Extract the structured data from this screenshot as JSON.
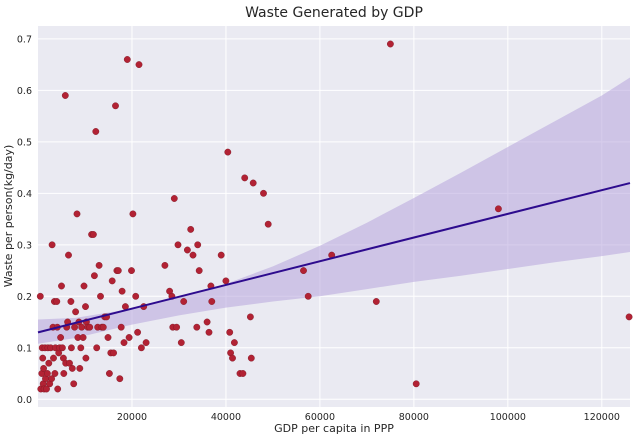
{
  "chart_data": {
    "type": "scatter",
    "title": "Waste Generated by GDP",
    "xlabel": "GDP per capita in PPP",
    "ylabel": "Waste per person(kg/day)",
    "xlim": [
      0,
      126000
    ],
    "ylim": [
      -0.015,
      0.725
    ],
    "xticks": [
      20000,
      40000,
      60000,
      80000,
      100000,
      120000
    ],
    "yticks": [
      0.0,
      0.1,
      0.2,
      0.3,
      0.4,
      0.5,
      0.6,
      0.7
    ],
    "xtick_labels": [
      "20000",
      "40000",
      "60000",
      "80000",
      "100000",
      "120000"
    ],
    "ytick_labels": [
      "0.0",
      "0.1",
      "0.2",
      "0.3",
      "0.4",
      "0.5",
      "0.6",
      "0.7"
    ],
    "grid": true,
    "background_color": "#eaeaf2",
    "grid_color": "#ffffff",
    "point_color": "#b22234",
    "line_color": "#2d0b8e",
    "band_color": "#b7a4dc",
    "regression": {
      "line": [
        [
          0,
          0.13
        ],
        [
          126000,
          0.42
        ]
      ],
      "ci_upper": [
        [
          0,
          0.155
        ],
        [
          8000,
          0.158
        ],
        [
          20000,
          0.176
        ],
        [
          30000,
          0.197
        ],
        [
          40000,
          0.224
        ],
        [
          50000,
          0.258
        ],
        [
          60000,
          0.298
        ],
        [
          70000,
          0.343
        ],
        [
          80000,
          0.391
        ],
        [
          90000,
          0.44
        ],
        [
          100000,
          0.49
        ],
        [
          110000,
          0.54
        ],
        [
          120000,
          0.59
        ],
        [
          126000,
          0.625
        ]
      ],
      "ci_lower": [
        [
          0,
          0.108
        ],
        [
          8000,
          0.119
        ],
        [
          20000,
          0.145
        ],
        [
          30000,
          0.163
        ],
        [
          40000,
          0.178
        ],
        [
          50000,
          0.19
        ],
        [
          60000,
          0.2
        ],
        [
          70000,
          0.214
        ],
        [
          80000,
          0.228
        ],
        [
          90000,
          0.24
        ],
        [
          100000,
          0.253
        ],
        [
          110000,
          0.266
        ],
        [
          120000,
          0.278
        ],
        [
          126000,
          0.286
        ]
      ]
    },
    "points": [
      [
        500,
        0.2
      ],
      [
        600,
        0.02
      ],
      [
        800,
        0.05
      ],
      [
        900,
        0.1
      ],
      [
        1000,
        0.08
      ],
      [
        1100,
        0.03
      ],
      [
        1200,
        0.06
      ],
      [
        1300,
        0.02
      ],
      [
        1500,
        0.1
      ],
      [
        1600,
        0.04
      ],
      [
        1800,
        0.02
      ],
      [
        2000,
        0.05
      ],
      [
        2100,
        0.1
      ],
      [
        2300,
        0.07
      ],
      [
        2500,
        0.03
      ],
      [
        2700,
        0.1
      ],
      [
        2900,
        0.04
      ],
      [
        3000,
        0.3
      ],
      [
        3200,
        0.14
      ],
      [
        3300,
        0.08
      ],
      [
        3500,
        0.19
      ],
      [
        3600,
        0.05
      ],
      [
        3700,
        0.1
      ],
      [
        4000,
        0.19
      ],
      [
        4100,
        0.14
      ],
      [
        4200,
        0.02
      ],
      [
        4400,
        0.09
      ],
      [
        4600,
        0.1
      ],
      [
        4800,
        0.12
      ],
      [
        5000,
        0.22
      ],
      [
        5200,
        0.1
      ],
      [
        5400,
        0.08
      ],
      [
        5500,
        0.05
      ],
      [
        5800,
        0.59
      ],
      [
        5900,
        0.07
      ],
      [
        6100,
        0.14
      ],
      [
        6300,
        0.15
      ],
      [
        6500,
        0.28
      ],
      [
        6700,
        0.07
      ],
      [
        7000,
        0.19
      ],
      [
        7100,
        0.1
      ],
      [
        7300,
        0.06
      ],
      [
        7600,
        0.03
      ],
      [
        7800,
        0.14
      ],
      [
        8000,
        0.17
      ],
      [
        8300,
        0.36
      ],
      [
        8500,
        0.12
      ],
      [
        8700,
        0.15
      ],
      [
        8900,
        0.06
      ],
      [
        9100,
        0.1
      ],
      [
        9300,
        0.14
      ],
      [
        9600,
        0.12
      ],
      [
        9800,
        0.22
      ],
      [
        10100,
        0.18
      ],
      [
        10200,
        0.08
      ],
      [
        10300,
        0.15
      ],
      [
        10600,
        0.14
      ],
      [
        11000,
        0.14
      ],
      [
        11400,
        0.32
      ],
      [
        11800,
        0.32
      ],
      [
        12000,
        0.24
      ],
      [
        12300,
        0.52
      ],
      [
        12500,
        0.1
      ],
      [
        12700,
        0.14
      ],
      [
        13000,
        0.26
      ],
      [
        13300,
        0.2
      ],
      [
        13600,
        0.14
      ],
      [
        13900,
        0.14
      ],
      [
        14200,
        0.16
      ],
      [
        14600,
        0.16
      ],
      [
        14900,
        0.12
      ],
      [
        15200,
        0.05
      ],
      [
        15500,
        0.09
      ],
      [
        15800,
        0.23
      ],
      [
        16100,
        0.09
      ],
      [
        16500,
        0.57
      ],
      [
        16800,
        0.25
      ],
      [
        17100,
        0.25
      ],
      [
        17400,
        0.04
      ],
      [
        17700,
        0.14
      ],
      [
        17900,
        0.21
      ],
      [
        18300,
        0.11
      ],
      [
        18600,
        0.18
      ],
      [
        19000,
        0.66
      ],
      [
        19400,
        0.12
      ],
      [
        19900,
        0.25
      ],
      [
        20200,
        0.36
      ],
      [
        20800,
        0.2
      ],
      [
        21200,
        0.13
      ],
      [
        21500,
        0.65
      ],
      [
        22000,
        0.1
      ],
      [
        22500,
        0.18
      ],
      [
        23000,
        0.11
      ],
      [
        27000,
        0.26
      ],
      [
        28000,
        0.21
      ],
      [
        28500,
        0.2
      ],
      [
        28700,
        0.14
      ],
      [
        29000,
        0.39
      ],
      [
        29500,
        0.14
      ],
      [
        29800,
        0.3
      ],
      [
        30500,
        0.11
      ],
      [
        31000,
        0.19
      ],
      [
        31800,
        0.29
      ],
      [
        32500,
        0.33
      ],
      [
        33000,
        0.28
      ],
      [
        33800,
        0.14
      ],
      [
        34000,
        0.3
      ],
      [
        34300,
        0.25
      ],
      [
        36000,
        0.15
      ],
      [
        36400,
        0.13
      ],
      [
        36800,
        0.22
      ],
      [
        37000,
        0.19
      ],
      [
        39000,
        0.28
      ],
      [
        40000,
        0.23
      ],
      [
        40400,
        0.48
      ],
      [
        40800,
        0.13
      ],
      [
        41000,
        0.09
      ],
      [
        41400,
        0.08
      ],
      [
        41800,
        0.11
      ],
      [
        43000,
        0.05
      ],
      [
        43600,
        0.05
      ],
      [
        44000,
        0.43
      ],
      [
        45200,
        0.16
      ],
      [
        45400,
        0.08
      ],
      [
        45800,
        0.42
      ],
      [
        48000,
        0.4
      ],
      [
        49000,
        0.34
      ],
      [
        56500,
        0.25
      ],
      [
        57500,
        0.2
      ],
      [
        62500,
        0.28
      ],
      [
        72000,
        0.19
      ],
      [
        75000,
        0.69
      ],
      [
        80500,
        0.03
      ],
      [
        98000,
        0.37
      ],
      [
        125800,
        0.16
      ]
    ]
  }
}
